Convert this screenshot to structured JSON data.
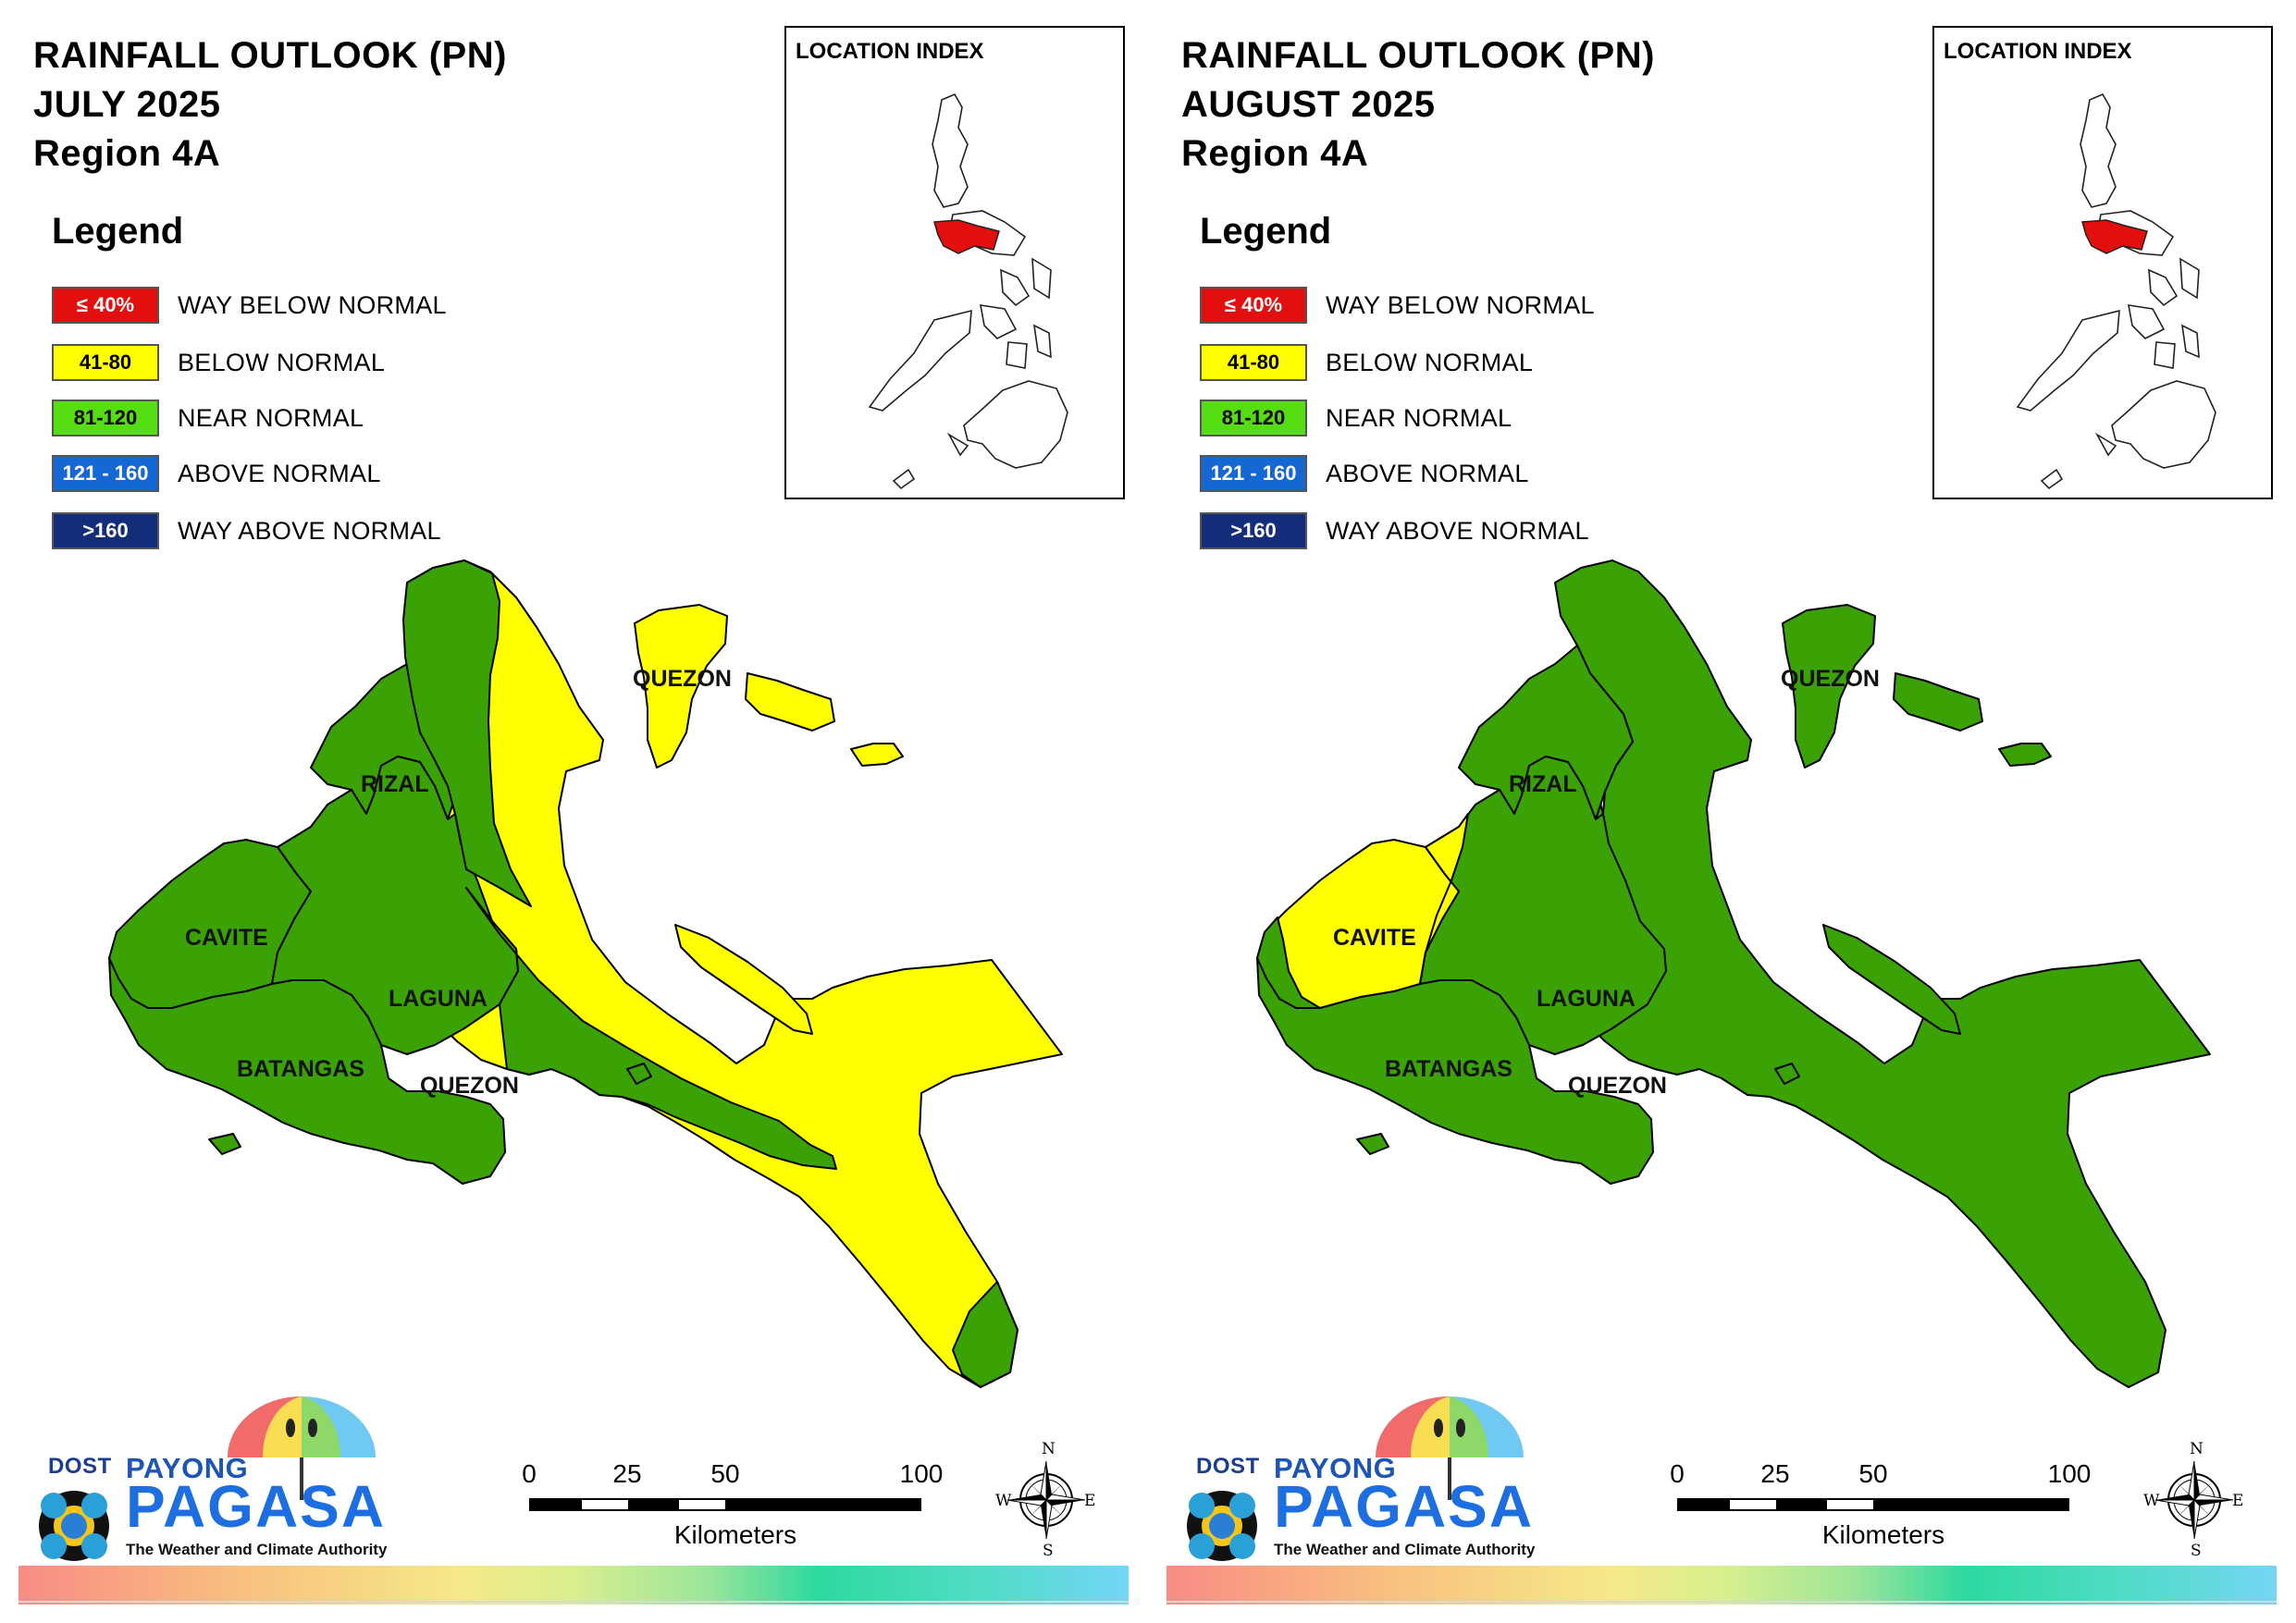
{
  "colors": {
    "way_below": "#e30e0e",
    "below": "#ffff00",
    "near": "#3aa205",
    "near_swatch": "#55dd14",
    "above": "#1567d3",
    "way_above": "#132d7a",
    "land_outline": "#000000"
  },
  "legend": {
    "title": "Legend",
    "items": [
      {
        "range": "≤ 40%",
        "label": "WAY BELOW NORMAL",
        "color": "#e30e0e",
        "text_color": "#ffffff"
      },
      {
        "range": "41-80",
        "label": "BELOW NORMAL",
        "color": "#ffff00",
        "text_color": "#000000"
      },
      {
        "range": "81-120",
        "label": "NEAR NORMAL",
        "color": "#55dd14",
        "text_color": "#000000"
      },
      {
        "range": "121 - 160",
        "label": "ABOVE NORMAL",
        "color": "#1567d3",
        "text_color": "#ffffff"
      },
      {
        "range": ">160",
        "label": "WAY ABOVE NORMAL",
        "color": "#132d7a",
        "text_color": "#ffffff"
      }
    ]
  },
  "inset": {
    "title": "LOCATION INDEX",
    "highlight_color": "#e30e0e"
  },
  "panels": [
    {
      "title_line1": "RAINFALL OUTLOOK (PN)",
      "title_line2": "JULY 2025",
      "title_line3": "Region 4A",
      "provinces": {
        "rizal": "RIZAL",
        "cavite": "CAVITE",
        "laguna": "LAGUNA",
        "batangas": "BATANGAS",
        "quezon": "QUEZON",
        "quezon_north": "QUEZON"
      },
      "categories": {
        "rizal": "near",
        "cavite": "near",
        "laguna": "near",
        "batangas": "near",
        "quezon_main": "below",
        "quezon_coast": "near",
        "quezon_north": "below"
      }
    },
    {
      "title_line1": "RAINFALL OUTLOOK (PN)",
      "title_line2": "AUGUST 2025",
      "title_line3": "Region 4A",
      "provinces": {
        "rizal": "RIZAL",
        "cavite": "CAVITE",
        "laguna": "LAGUNA",
        "batangas": "BATANGAS",
        "quezon": "QUEZON",
        "quezon_north": "QUEZON"
      },
      "categories": {
        "rizal": "near",
        "cavite": "below",
        "laguna": "near",
        "batangas": "near",
        "quezon_main": "near",
        "quezon_coast": "near",
        "quezon_north": "near"
      }
    }
  ],
  "scale": {
    "ticks": [
      "0",
      "25",
      "50",
      "100"
    ],
    "unit": "Kilometers"
  },
  "compass": {
    "n": "N",
    "s": "S",
    "e": "E",
    "w": "W"
  },
  "logo": {
    "agency": "DOST",
    "brand_top": "PAYONG",
    "brand_main": "PAGASA",
    "tagline": "The Weather and Climate Authority"
  }
}
